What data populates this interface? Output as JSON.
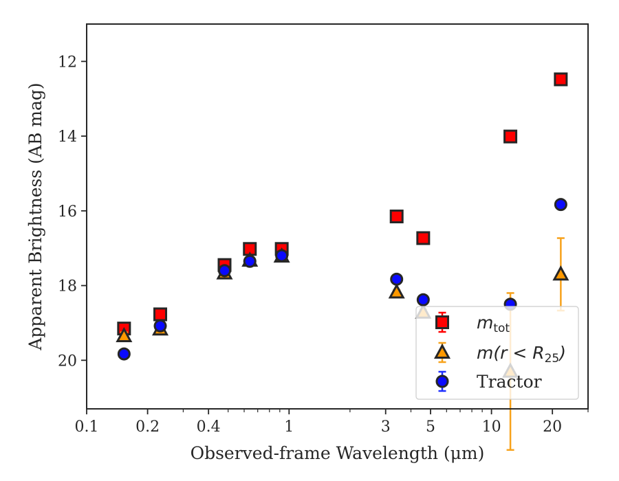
{
  "chart_data": {
    "type": "scatter",
    "xlabel": "Observed-frame Wavelength (μm)",
    "ylabel": "Apparent Brightness (AB mag)",
    "xscale": "log",
    "xlim": [
      0.1,
      30
    ],
    "ylim": [
      21.3,
      11
    ],
    "y_inverted": true,
    "x_ticks": [
      {
        "value": 0.1,
        "label": "0.1"
      },
      {
        "value": 0.2,
        "label": "0.2"
      },
      {
        "value": 0.4,
        "label": "0.4"
      },
      {
        "value": 1,
        "label": "1"
      },
      {
        "value": 3,
        "label": "3"
      },
      {
        "value": 5,
        "label": "5"
      },
      {
        "value": 10,
        "label": "10"
      },
      {
        "value": 20,
        "label": "20"
      }
    ],
    "x_minor_ticks": [
      0.3,
      0.5,
      0.6,
      0.7,
      0.8,
      0.9,
      2,
      4,
      6,
      7,
      8,
      9,
      30
    ],
    "y_ticks": [
      {
        "value": 12,
        "label": "12"
      },
      {
        "value": 14,
        "label": "14"
      },
      {
        "value": 16,
        "label": "16"
      },
      {
        "value": 18,
        "label": "18"
      },
      {
        "value": 20,
        "label": "20"
      }
    ],
    "grid": false,
    "legend_position": "lower-right",
    "series": [
      {
        "name": "m_tot",
        "label_main": "m",
        "label_sub": "tot",
        "marker": "square",
        "face_color": "#ff0000",
        "edge_color": "#262626",
        "err_color": "#ff0000",
        "points": [
          {
            "x": 0.153,
            "y": 19.15,
            "err": 0.1
          },
          {
            "x": 0.231,
            "y": 18.77,
            "err": 0.1
          },
          {
            "x": 0.48,
            "y": 17.45,
            "err": 0.06
          },
          {
            "x": 0.64,
            "y": 17.02,
            "err": 0.06
          },
          {
            "x": 0.92,
            "y": 17.02,
            "err": 0.06
          },
          {
            "x": 3.4,
            "y": 16.15,
            "err": 0.05
          },
          {
            "x": 4.6,
            "y": 16.73,
            "err": 0.05
          },
          {
            "x": 12.4,
            "y": 14.01,
            "err": 0.05
          },
          {
            "x": 22.0,
            "y": 12.48,
            "err": 0.05
          }
        ]
      },
      {
        "name": "m(r<R25)",
        "label_main": "m(r < R",
        "label_sub": "25",
        "label_tail": ")",
        "marker": "triangle",
        "face_color": "#ff9900",
        "edge_color": "#262626",
        "err_color": "#f7a21b",
        "points": [
          {
            "x": 0.153,
            "y": 19.35,
            "err": 0.1
          },
          {
            "x": 0.231,
            "y": 19.17,
            "err": 0.1
          },
          {
            "x": 0.48,
            "y": 17.67,
            "err": 0.06
          },
          {
            "x": 0.64,
            "y": 17.33,
            "err": 0.06
          },
          {
            "x": 0.92,
            "y": 17.22,
            "err": 0.06
          },
          {
            "x": 3.4,
            "y": 18.18,
            "err": 0.06
          },
          {
            "x": 4.6,
            "y": 18.72,
            "err": 0.08
          },
          {
            "x": 12.4,
            "y": 20.3,
            "err": 2.1
          },
          {
            "x": 22.0,
            "y": 17.7,
            "err": 0.97
          }
        ]
      },
      {
        "name": "Tractor",
        "label_main": "Tractor",
        "marker": "circle",
        "face_color": "#0a0aff",
        "edge_color": "#262626",
        "err_color": "#1f2fff",
        "points": [
          {
            "x": 0.153,
            "y": 19.83,
            "err": 0.08
          },
          {
            "x": 0.231,
            "y": 19.08,
            "err": 0.08
          },
          {
            "x": 0.48,
            "y": 17.6,
            "err": 0.06
          },
          {
            "x": 0.64,
            "y": 17.35,
            "err": 0.06
          },
          {
            "x": 0.92,
            "y": 17.2,
            "err": 0.06
          },
          {
            "x": 3.4,
            "y": 17.83,
            "err": 0.06
          },
          {
            "x": 4.6,
            "y": 18.38,
            "err": 0.06
          },
          {
            "x": 12.4,
            "y": 18.5,
            "err": 0.08
          },
          {
            "x": 22.0,
            "y": 15.83,
            "err": 0.06
          }
        ]
      }
    ]
  }
}
